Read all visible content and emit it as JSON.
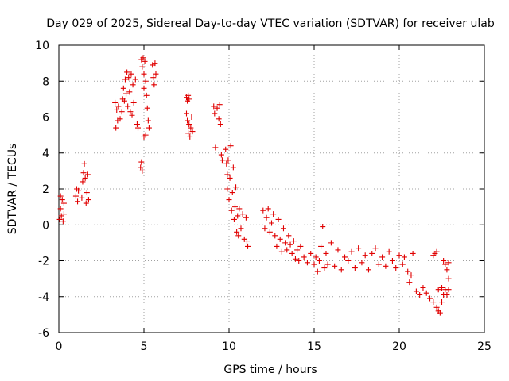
{
  "chart_data": {
    "type": "scatter",
    "title": "Day 029 of 2025, Sidereal Day-to-day VTEC variation (SDTVAR) for receiver ulab",
    "xlabel": "GPS time / hours",
    "ylabel": "SDTVAR / TECUs",
    "xlim": [
      0,
      25
    ],
    "ylim": [
      -6,
      10
    ],
    "xticks": [
      0,
      5,
      10,
      15,
      20,
      25
    ],
    "yticks": [
      -6,
      -4,
      -2,
      0,
      2,
      4,
      6,
      8,
      10
    ],
    "xtick_labels": [
      "0",
      "5",
      "10",
      "15",
      "20",
      "25"
    ],
    "ytick_labels": [
      "-6",
      "-4",
      "-2",
      "0",
      "2",
      "4",
      "6",
      "8",
      "10"
    ],
    "grid": true,
    "marker": "+",
    "color": "#e00000",
    "series": [
      {
        "name": "SDTVAR",
        "points": [
          [
            0.05,
            0.3
          ],
          [
            0.1,
            0.9
          ],
          [
            0.1,
            1.6
          ],
          [
            0.15,
            0.5
          ],
          [
            0.2,
            1.4
          ],
          [
            0.25,
            0.2
          ],
          [
            0.3,
            1.2
          ],
          [
            0.3,
            0.6
          ],
          [
            1.0,
            1.6
          ],
          [
            1.05,
            2.0
          ],
          [
            1.1,
            1.3
          ],
          [
            1.15,
            1.9
          ],
          [
            1.35,
            1.5
          ],
          [
            1.4,
            2.4
          ],
          [
            1.45,
            2.9
          ],
          [
            1.5,
            3.4
          ],
          [
            1.55,
            2.6
          ],
          [
            1.6,
            1.2
          ],
          [
            1.65,
            1.8
          ],
          [
            1.7,
            2.8
          ],
          [
            1.75,
            1.4
          ],
          [
            3.3,
            6.8
          ],
          [
            3.35,
            5.4
          ],
          [
            3.4,
            6.4
          ],
          [
            3.45,
            5.8
          ],
          [
            3.5,
            6.6
          ],
          [
            3.6,
            5.9
          ],
          [
            3.7,
            6.3
          ],
          [
            3.75,
            7.0
          ],
          [
            3.8,
            7.6
          ],
          [
            3.85,
            6.9
          ],
          [
            3.9,
            8.1
          ],
          [
            3.95,
            7.3
          ],
          [
            4.0,
            8.5
          ],
          [
            4.05,
            6.6
          ],
          [
            4.1,
            8.2
          ],
          [
            4.15,
            7.4
          ],
          [
            4.2,
            6.3
          ],
          [
            4.25,
            8.4
          ],
          [
            4.3,
            6.1
          ],
          [
            4.35,
            7.8
          ],
          [
            4.4,
            6.8
          ],
          [
            4.5,
            8.1
          ],
          [
            4.6,
            5.6
          ],
          [
            4.65,
            5.4
          ],
          [
            4.8,
            3.2
          ],
          [
            4.85,
            3.5
          ],
          [
            4.9,
            3.0
          ],
          [
            4.85,
            9.2
          ],
          [
            4.9,
            8.8
          ],
          [
            4.95,
            9.3
          ],
          [
            5.0,
            8.4
          ],
          [
            5.0,
            7.6
          ],
          [
            5.05,
            9.1
          ],
          [
            5.1,
            8.0
          ],
          [
            5.15,
            7.2
          ],
          [
            5.2,
            6.5
          ],
          [
            5.25,
            5.8
          ],
          [
            5.3,
            5.4
          ],
          [
            5.1,
            5.0
          ],
          [
            5.0,
            4.9
          ],
          [
            5.5,
            8.9
          ],
          [
            5.55,
            8.2
          ],
          [
            5.6,
            7.8
          ],
          [
            5.65,
            9.0
          ],
          [
            5.7,
            8.4
          ],
          [
            7.5,
            7.1
          ],
          [
            7.55,
            6.9
          ],
          [
            7.6,
            7.2
          ],
          [
            7.65,
            7.0
          ],
          [
            7.5,
            6.2
          ],
          [
            7.55,
            5.8
          ],
          [
            7.6,
            5.1
          ],
          [
            7.65,
            5.6
          ],
          [
            7.7,
            4.9
          ],
          [
            7.75,
            5.4
          ],
          [
            7.8,
            6.0
          ],
          [
            7.85,
            5.2
          ],
          [
            9.1,
            6.6
          ],
          [
            9.15,
            6.2
          ],
          [
            9.2,
            4.3
          ],
          [
            9.3,
            6.5
          ],
          [
            9.4,
            5.9
          ],
          [
            9.45,
            6.7
          ],
          [
            9.5,
            5.6
          ],
          [
            9.55,
            3.9
          ],
          [
            9.6,
            3.6
          ],
          [
            9.8,
            4.2
          ],
          [
            9.85,
            3.4
          ],
          [
            9.9,
            2.8
          ],
          [
            9.9,
            2.0
          ],
          [
            9.95,
            3.6
          ],
          [
            10.0,
            1.4
          ],
          [
            10.05,
            2.6
          ],
          [
            10.1,
            4.4
          ],
          [
            10.15,
            0.8
          ],
          [
            10.2,
            1.8
          ],
          [
            10.25,
            3.2
          ],
          [
            10.3,
            0.3
          ],
          [
            10.35,
            1.0
          ],
          [
            10.4,
            2.1
          ],
          [
            10.45,
            -0.4
          ],
          [
            10.5,
            0.5
          ],
          [
            10.55,
            -0.6
          ],
          [
            10.6,
            0.9
          ],
          [
            10.7,
            -0.2
          ],
          [
            10.8,
            0.6
          ],
          [
            10.9,
            -0.8
          ],
          [
            11.0,
            0.4
          ],
          [
            11.05,
            -0.9
          ],
          [
            11.1,
            -1.2
          ],
          [
            12.0,
            0.8
          ],
          [
            12.1,
            -0.2
          ],
          [
            12.2,
            0.4
          ],
          [
            12.3,
            0.9
          ],
          [
            12.4,
            -0.4
          ],
          [
            12.5,
            0.1
          ],
          [
            12.6,
            0.6
          ],
          [
            12.7,
            -0.6
          ],
          [
            12.8,
            -1.2
          ],
          [
            12.9,
            0.3
          ],
          [
            13.0,
            -0.8
          ],
          [
            13.1,
            -1.5
          ],
          [
            13.2,
            -0.2
          ],
          [
            13.3,
            -1.0
          ],
          [
            13.4,
            -1.4
          ],
          [
            13.5,
            -0.6
          ],
          [
            13.6,
            -1.1
          ],
          [
            13.7,
            -1.6
          ],
          [
            13.8,
            -0.9
          ],
          [
            13.9,
            -1.9
          ],
          [
            14.0,
            -1.4
          ],
          [
            14.1,
            -2.0
          ],
          [
            14.2,
            -1.2
          ],
          [
            14.4,
            -1.8
          ],
          [
            14.6,
            -2.1
          ],
          [
            14.8,
            -1.6
          ],
          [
            15.0,
            -2.2
          ],
          [
            15.1,
            -1.8
          ],
          [
            15.2,
            -2.6
          ],
          [
            15.3,
            -2.0
          ],
          [
            15.4,
            -1.2
          ],
          [
            15.5,
            -0.1
          ],
          [
            15.6,
            -2.4
          ],
          [
            15.7,
            -1.6
          ],
          [
            15.8,
            -2.2
          ],
          [
            16.0,
            -1.0
          ],
          [
            16.2,
            -2.3
          ],
          [
            16.4,
            -1.4
          ],
          [
            16.6,
            -2.5
          ],
          [
            16.8,
            -1.8
          ],
          [
            17.0,
            -2.0
          ],
          [
            17.2,
            -1.5
          ],
          [
            17.4,
            -2.4
          ],
          [
            17.6,
            -1.3
          ],
          [
            17.8,
            -2.1
          ],
          [
            18.0,
            -1.7
          ],
          [
            18.2,
            -2.5
          ],
          [
            18.4,
            -1.6
          ],
          [
            18.6,
            -1.3
          ],
          [
            18.8,
            -2.2
          ],
          [
            19.0,
            -1.8
          ],
          [
            19.2,
            -2.3
          ],
          [
            19.4,
            -1.5
          ],
          [
            19.6,
            -2.0
          ],
          [
            19.8,
            -2.4
          ],
          [
            20.0,
            -1.7
          ],
          [
            20.2,
            -2.2
          ],
          [
            20.3,
            -1.8
          ],
          [
            20.5,
            -2.6
          ],
          [
            20.6,
            -3.2
          ],
          [
            20.7,
            -2.8
          ],
          [
            20.8,
            -1.6
          ],
          [
            21.0,
            -3.7
          ],
          [
            21.2,
            -3.9
          ],
          [
            21.4,
            -3.5
          ],
          [
            21.6,
            -3.8
          ],
          [
            21.8,
            -4.1
          ],
          [
            22.0,
            -4.3
          ],
          [
            22.2,
            -4.6
          ],
          [
            22.3,
            -4.8
          ],
          [
            22.4,
            -4.9
          ],
          [
            22.5,
            -4.3
          ],
          [
            22.6,
            -3.9
          ],
          [
            22.7,
            -3.6
          ],
          [
            22.8,
            -3.9
          ],
          [
            22.9,
            -3.6
          ],
          [
            22.3,
            -3.6
          ],
          [
            22.5,
            -3.5
          ],
          [
            22.6,
            -2.0
          ],
          [
            22.7,
            -2.2
          ],
          [
            22.8,
            -2.5
          ],
          [
            22.9,
            -2.1
          ],
          [
            22.9,
            -3.0
          ],
          [
            22.0,
            -1.7
          ],
          [
            22.1,
            -1.6
          ],
          [
            22.2,
            -1.5
          ]
        ]
      }
    ]
  }
}
